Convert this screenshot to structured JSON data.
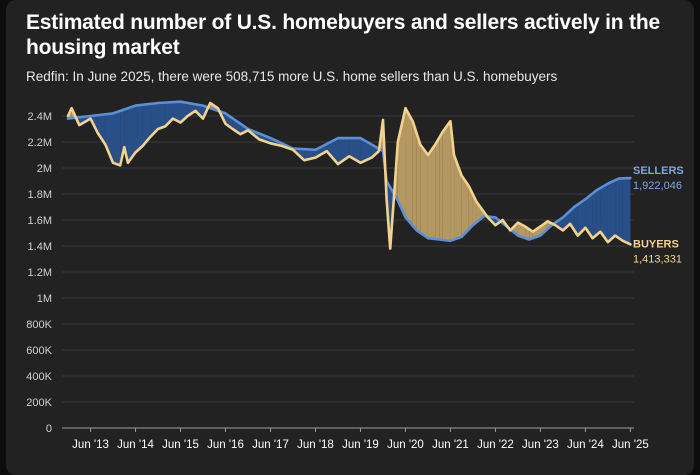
{
  "chart_data": {
    "type": "line",
    "title": "Estimated number of U.S. homebuyers and sellers actively in the housing market",
    "subtitle": "Redfin: In June 2025, there were 508,715 more U.S. home sellers than U.S. homebuyers",
    "y_ticks": [
      "0",
      "200K",
      "400K",
      "600K",
      "800K",
      "1M",
      "1.2M",
      "1.4M",
      "1.6M",
      "1.8M",
      "2M",
      "2.2M",
      "2.4M"
    ],
    "y_tick_values": [
      0,
      200000,
      400000,
      600000,
      800000,
      1000000,
      1200000,
      1400000,
      1600000,
      1800000,
      2000000,
      2200000,
      2400000
    ],
    "ylim": [
      0,
      2400000
    ],
    "x_ticks": [
      "Jun '13",
      "Jun '14",
      "Jun '15",
      "Jun '16",
      "Jun '17",
      "Jun '18",
      "Jun '19",
      "Jun '20",
      "Jun '21",
      "Jun '22",
      "Jun '23",
      "Jun '24",
      "Jun '25"
    ],
    "x_tick_values": [
      2013.42,
      2014.42,
      2015.42,
      2016.42,
      2017.42,
      2018.42,
      2019.42,
      2020.42,
      2021.42,
      2022.42,
      2023.42,
      2024.42,
      2025.42
    ],
    "xlim": [
      2012.83,
      2025.5
    ],
    "grid": true,
    "colors": {
      "sellers": "#5b8fd6",
      "buyers": "#f2d38d",
      "sellers_fill": "#294f89",
      "buyers_fill": "#b59762"
    },
    "series": [
      {
        "name": "SELLERS",
        "end_label": "1,922,046",
        "x": [
          2012.92,
          2013.42,
          2013.92,
          2014.42,
          2014.92,
          2015.42,
          2015.92,
          2016.42,
          2016.92,
          2017.42,
          2017.92,
          2018.42,
          2018.92,
          2019.42,
          2019.92,
          2020.0,
          2020.25,
          2020.42,
          2020.67,
          2020.92,
          2021.17,
          2021.42,
          2021.67,
          2021.92,
          2022.17,
          2022.42,
          2022.67,
          2022.92,
          2023.17,
          2023.42,
          2023.67,
          2023.92,
          2024.17,
          2024.42,
          2024.67,
          2024.92,
          2025.17,
          2025.42
        ],
        "values": [
          2380000,
          2400000,
          2420000,
          2480000,
          2500000,
          2510000,
          2480000,
          2420000,
          2300000,
          2230000,
          2150000,
          2140000,
          2230000,
          2230000,
          2130000,
          1900000,
          1750000,
          1620000,
          1520000,
          1460000,
          1450000,
          1440000,
          1470000,
          1560000,
          1630000,
          1620000,
          1550000,
          1480000,
          1450000,
          1480000,
          1560000,
          1620000,
          1700000,
          1760000,
          1830000,
          1880000,
          1920000,
          1922046
        ]
      },
      {
        "name": "BUYERS",
        "end_label": "1,413,331",
        "x": [
          2012.92,
          2013.0,
          2013.17,
          2013.42,
          2013.58,
          2013.75,
          2013.92,
          2014.08,
          2014.17,
          2014.25,
          2014.42,
          2014.58,
          2014.75,
          2014.92,
          2015.08,
          2015.25,
          2015.42,
          2015.58,
          2015.75,
          2015.92,
          2016.08,
          2016.25,
          2016.42,
          2016.58,
          2016.75,
          2016.92,
          2017.17,
          2017.42,
          2017.67,
          2017.92,
          2018.17,
          2018.42,
          2018.67,
          2018.92,
          2019.17,
          2019.42,
          2019.67,
          2019.83,
          2019.92,
          2020.0,
          2020.08,
          2020.17,
          2020.25,
          2020.42,
          2020.58,
          2020.75,
          2020.92,
          2021.08,
          2021.25,
          2021.42,
          2021.5,
          2021.67,
          2021.83,
          2022.0,
          2022.25,
          2022.42,
          2022.58,
          2022.75,
          2022.92,
          2023.08,
          2023.25,
          2023.42,
          2023.58,
          2023.75,
          2023.92,
          2024.08,
          2024.25,
          2024.42,
          2024.58,
          2024.75,
          2024.92,
          2025.08,
          2025.25,
          2025.42
        ],
        "values": [
          2400000,
          2460000,
          2330000,
          2380000,
          2270000,
          2180000,
          2040000,
          2020000,
          2160000,
          2040000,
          2120000,
          2170000,
          2240000,
          2300000,
          2320000,
          2380000,
          2350000,
          2400000,
          2440000,
          2380000,
          2500000,
          2460000,
          2340000,
          2300000,
          2260000,
          2290000,
          2220000,
          2190000,
          2170000,
          2140000,
          2060000,
          2080000,
          2130000,
          2030000,
          2090000,
          2040000,
          2080000,
          2130000,
          2370000,
          1760000,
          1380000,
          1800000,
          2200000,
          2460000,
          2360000,
          2180000,
          2100000,
          2180000,
          2280000,
          2360000,
          2100000,
          1940000,
          1860000,
          1740000,
          1620000,
          1560000,
          1600000,
          1520000,
          1580000,
          1550000,
          1510000,
          1550000,
          1590000,
          1560000,
          1520000,
          1570000,
          1480000,
          1540000,
          1460000,
          1510000,
          1430000,
          1480000,
          1440000,
          1413331
        ]
      }
    ]
  }
}
